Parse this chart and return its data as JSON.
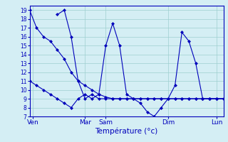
{
  "xlabel": "Température (°c)",
  "background_color": "#d4eef4",
  "grid_color": "#9ecfcf",
  "line_color": "#0000bb",
  "ylim": [
    7,
    19.5
  ],
  "xlim": [
    0,
    28
  ],
  "yticks": [
    7,
    8,
    9,
    10,
    11,
    12,
    13,
    14,
    15,
    16,
    17,
    18,
    19
  ],
  "day_labels": [
    "Ven",
    "Mar",
    "Sam",
    "Dim",
    "Lun"
  ],
  "day_positions": [
    0.5,
    8,
    11,
    20,
    27
  ],
  "series": [
    {
      "x": [
        0,
        1,
        2,
        3,
        4,
        5,
        6,
        7,
        8,
        9,
        10,
        11,
        12,
        13,
        14,
        15,
        16,
        17,
        18,
        19,
        20,
        21,
        22,
        23,
        24,
        25,
        26,
        27,
        28
      ],
      "y": [
        19,
        17,
        16,
        15.5,
        14.5,
        13.5,
        12,
        11,
        10.5,
        10,
        9.5,
        9.2,
        9,
        9,
        9,
        9,
        9,
        9,
        9,
        9,
        9,
        9,
        9,
        9,
        9,
        9,
        9,
        9,
        9
      ]
    },
    {
      "x": [
        0,
        1,
        2,
        3,
        4,
        5,
        6,
        7,
        8,
        9,
        10,
        11,
        12,
        13,
        14,
        15,
        16,
        17,
        18,
        19,
        20,
        21,
        22,
        23,
        24,
        25,
        26,
        27,
        28
      ],
      "y": [
        11,
        10.5,
        10,
        9.5,
        9,
        8.5,
        8,
        9,
        9.5,
        9,
        9.5,
        15,
        17.5,
        15,
        9.5,
        9,
        8.5,
        7.5,
        7,
        8,
        9,
        10.5,
        16.5,
        15.5,
        13,
        9,
        9,
        9,
        9
      ]
    },
    {
      "x": [
        4,
        5,
        6,
        7,
        8,
        9,
        10,
        11,
        12,
        13,
        14,
        15,
        16,
        17,
        18,
        19,
        20,
        21,
        22,
        23,
        24,
        25,
        26,
        27,
        28
      ],
      "y": [
        18.5,
        19,
        16,
        11,
        9,
        9.5,
        9,
        9,
        9,
        9,
        9,
        9,
        9,
        9,
        9,
        9,
        9,
        9,
        9,
        9,
        9,
        9,
        9,
        9,
        9
      ]
    }
  ]
}
